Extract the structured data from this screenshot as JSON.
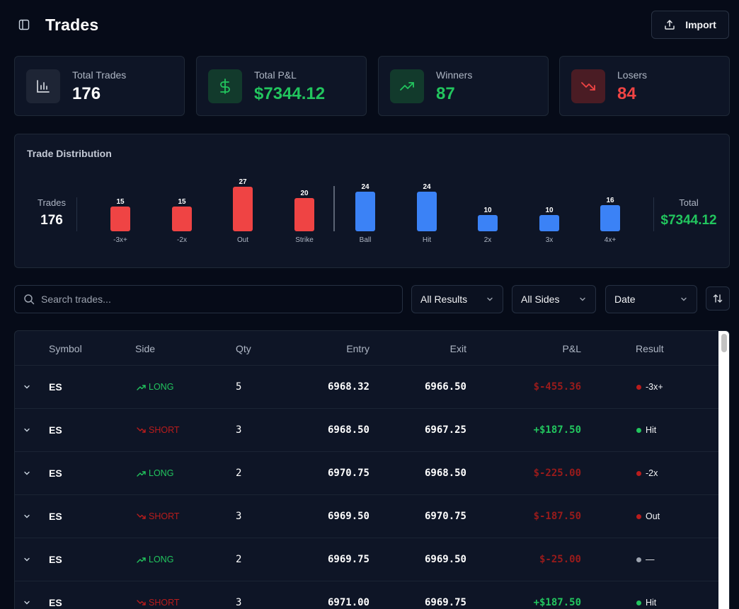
{
  "header": {
    "title": "Trades",
    "import_label": "Import"
  },
  "stats": [
    {
      "label": "Total Trades",
      "value": "176",
      "icon": "bar-chart-icon",
      "color": "#ffffff"
    },
    {
      "label": "Total P&L",
      "value": "$7344.12",
      "icon": "dollar-icon",
      "color": "#22c55e"
    },
    {
      "label": "Winners",
      "value": "87",
      "icon": "trending-up-icon",
      "color": "#22c55e"
    },
    {
      "label": "Losers",
      "value": "84",
      "icon": "trending-down-icon",
      "color": "#ef4444"
    }
  ],
  "distribution": {
    "title": "Trade Distribution",
    "trades_label": "Trades",
    "trades_value": "176",
    "total_label": "Total",
    "total_value": "$7344.12"
  },
  "chart_data": {
    "type": "bar",
    "title": "Trade Distribution",
    "categories": [
      "-3x+",
      "-2x",
      "Out",
      "Strike",
      "Ball",
      "Hit",
      "2x",
      "3x",
      "4x+"
    ],
    "values": [
      15,
      15,
      27,
      20,
      24,
      24,
      10,
      10,
      16
    ],
    "colors": [
      "#ef4444",
      "#ef4444",
      "#ef4444",
      "#ef4444",
      "#3b82f6",
      "#3b82f6",
      "#3b82f6",
      "#3b82f6",
      "#3b82f6"
    ],
    "divider_after_index": 3,
    "ylim": [
      0,
      27
    ]
  },
  "filters": {
    "search_placeholder": "Search trades...",
    "result_select": "All Results",
    "side_select": "All Sides",
    "sort_select": "Date"
  },
  "table": {
    "columns": [
      "Symbol",
      "Side",
      "Qty",
      "Entry",
      "Exit",
      "P&L",
      "Result"
    ],
    "rows": [
      {
        "symbol": "ES",
        "side": "LONG",
        "qty": "5",
        "entry": "6968.32",
        "exit": "6966.50",
        "pnl": "$-455.36",
        "result": "-3x+",
        "pnl_positive": false,
        "dot": "#b91c1c"
      },
      {
        "symbol": "ES",
        "side": "SHORT",
        "qty": "3",
        "entry": "6968.50",
        "exit": "6967.25",
        "pnl": "+$187.50",
        "result": "Hit",
        "pnl_positive": true,
        "dot": "#22c55e"
      },
      {
        "symbol": "ES",
        "side": "LONG",
        "qty": "2",
        "entry": "6970.75",
        "exit": "6968.50",
        "pnl": "$-225.00",
        "result": "-2x",
        "pnl_positive": false,
        "dot": "#b91c1c"
      },
      {
        "symbol": "ES",
        "side": "SHORT",
        "qty": "3",
        "entry": "6969.50",
        "exit": "6970.75",
        "pnl": "$-187.50",
        "result": "Out",
        "pnl_positive": false,
        "dot": "#b91c1c"
      },
      {
        "symbol": "ES",
        "side": "LONG",
        "qty": "2",
        "entry": "6969.75",
        "exit": "6969.50",
        "pnl": "$-25.00",
        "result": "—",
        "pnl_positive": false,
        "dot": "#9ca3af"
      },
      {
        "symbol": "ES",
        "side": "SHORT",
        "qty": "3",
        "entry": "6971.00",
        "exit": "6969.75",
        "pnl": "+$187.50",
        "result": "Hit",
        "pnl_positive": true,
        "dot": "#22c55e"
      }
    ]
  },
  "colors": {
    "positive": "#22c55e",
    "negative": "#991b1b",
    "long": "#22c55e",
    "short": "#b91c1c"
  }
}
